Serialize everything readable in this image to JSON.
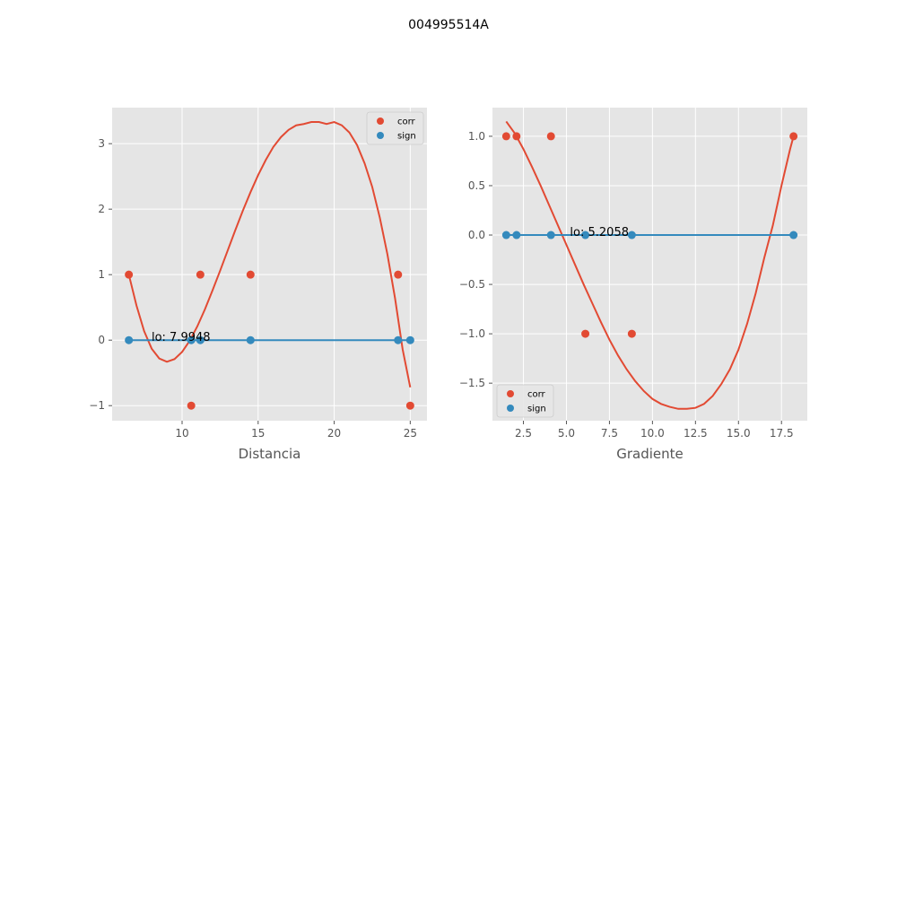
{
  "figure_title": "004995514A",
  "colors": {
    "corr": "#E24A33",
    "sign": "#348ABD",
    "panel_bg": "#E5E5E5",
    "grid": "#FFFFFF"
  },
  "chart_data": [
    {
      "type": "scatter",
      "xlabel": "Distancia",
      "ylabel": "",
      "xlim": [
        5.4,
        26.1
      ],
      "ylim": [
        -1.23,
        3.55
      ],
      "xticks": [
        10,
        15,
        20,
        25
      ],
      "xtick_labels": [
        "10",
        "15",
        "20",
        "25"
      ],
      "yticks": [
        -1,
        0,
        1,
        2,
        3
      ],
      "ytick_labels": [
        "−1",
        "0",
        "1",
        "2",
        "3"
      ],
      "grid": true,
      "legend_position": "upper right",
      "annotation": {
        "text": "lo: 7.9948",
        "x": 7.9948,
        "y": 0
      },
      "series": [
        {
          "name": "corr",
          "kind": "points",
          "x": [
            6.5,
            10.6,
            11.2,
            14.5,
            24.2,
            25.0
          ],
          "y": [
            1,
            -1,
            1,
            1,
            1,
            -1
          ]
        },
        {
          "name": "sign",
          "kind": "points",
          "x": [
            6.5,
            10.6,
            11.2,
            14.5,
            24.2,
            25.0
          ],
          "y": [
            0,
            0,
            0,
            0,
            0,
            0
          ]
        },
        {
          "kind": "line",
          "color": "corr",
          "x": [
            6.5,
            7.0,
            7.5,
            8.0,
            8.5,
            9.0,
            9.5,
            10.0,
            10.5,
            11.0,
            11.5,
            12.0,
            12.5,
            13.0,
            13.5,
            14.0,
            14.5,
            15.0,
            15.5,
            16.0,
            16.5,
            17.0,
            17.5,
            18.0,
            18.5,
            19.0,
            19.5,
            20.0,
            20.5,
            21.0,
            21.5,
            22.0,
            22.5,
            23.0,
            23.5,
            24.0,
            24.5,
            25.0
          ],
          "y": [
            1.0,
            0.53,
            0.14,
            -0.13,
            -0.28,
            -0.33,
            -0.29,
            -0.18,
            -0.01,
            0.21,
            0.47,
            0.76,
            1.06,
            1.37,
            1.68,
            1.98,
            2.26,
            2.52,
            2.75,
            2.95,
            3.1,
            3.21,
            3.28,
            3.3,
            3.33,
            3.33,
            3.3,
            3.33,
            3.28,
            3.17,
            2.98,
            2.7,
            2.34,
            1.87,
            1.31,
            0.64,
            -0.14,
            -0.72
          ]
        },
        {
          "kind": "line",
          "color": "sign",
          "x": [
            6.5,
            25.0
          ],
          "y": [
            0,
            0
          ]
        }
      ]
    },
    {
      "type": "scatter",
      "xlabel": "Gradiente",
      "ylabel": "",
      "xlim": [
        0.7,
        19.0
      ],
      "ylim": [
        -1.88,
        1.29
      ],
      "xticks": [
        2.5,
        5.0,
        7.5,
        10.0,
        12.5,
        15.0,
        17.5
      ],
      "xtick_labels": [
        "2.5",
        "5.0",
        "7.5",
        "10.0",
        "12.5",
        "15.0",
        "17.5"
      ],
      "yticks": [
        -1.5,
        -1.0,
        -0.5,
        0.0,
        0.5,
        1.0
      ],
      "ytick_labels": [
        "−1.5",
        "−1.0",
        "−0.5",
        "0.0",
        "0.5",
        "1.0"
      ],
      "grid": true,
      "legend_position": "lower left",
      "annotation": {
        "text": "lo: 5.2058",
        "x": 5.2058,
        "y": 0
      },
      "series": [
        {
          "name": "corr",
          "kind": "points",
          "x": [
            1.5,
            2.1,
            4.1,
            6.1,
            8.8,
            18.2
          ],
          "y": [
            1,
            1,
            1,
            -1,
            -1,
            1
          ]
        },
        {
          "name": "sign",
          "kind": "points",
          "x": [
            1.5,
            2.1,
            4.1,
            6.1,
            8.8,
            18.2
          ],
          "y": [
            0,
            0,
            0,
            0,
            0,
            0
          ]
        },
        {
          "kind": "line",
          "color": "corr",
          "x": [
            1.5,
            2.0,
            2.5,
            3.0,
            3.5,
            4.0,
            4.5,
            5.0,
            5.5,
            6.0,
            6.5,
            7.0,
            7.5,
            8.0,
            8.5,
            9.0,
            9.5,
            10.0,
            10.5,
            11.0,
            11.5,
            12.0,
            12.5,
            13.0,
            13.5,
            14.0,
            14.5,
            15.0,
            15.5,
            16.0,
            16.5,
            17.0,
            17.5,
            18.0,
            18.2
          ],
          "y": [
            1.15,
            1.03,
            0.87,
            0.69,
            0.5,
            0.3,
            0.1,
            -0.1,
            -0.3,
            -0.5,
            -0.69,
            -0.88,
            -1.06,
            -1.22,
            -1.36,
            -1.48,
            -1.58,
            -1.66,
            -1.71,
            -1.74,
            -1.76,
            -1.76,
            -1.75,
            -1.71,
            -1.63,
            -1.51,
            -1.36,
            -1.16,
            -0.9,
            -0.59,
            -0.23,
            0.1,
            0.5,
            0.87,
            1.0
          ]
        },
        {
          "kind": "line",
          "color": "sign",
          "x": [
            1.5,
            18.2
          ],
          "y": [
            0,
            0
          ]
        }
      ]
    }
  ]
}
